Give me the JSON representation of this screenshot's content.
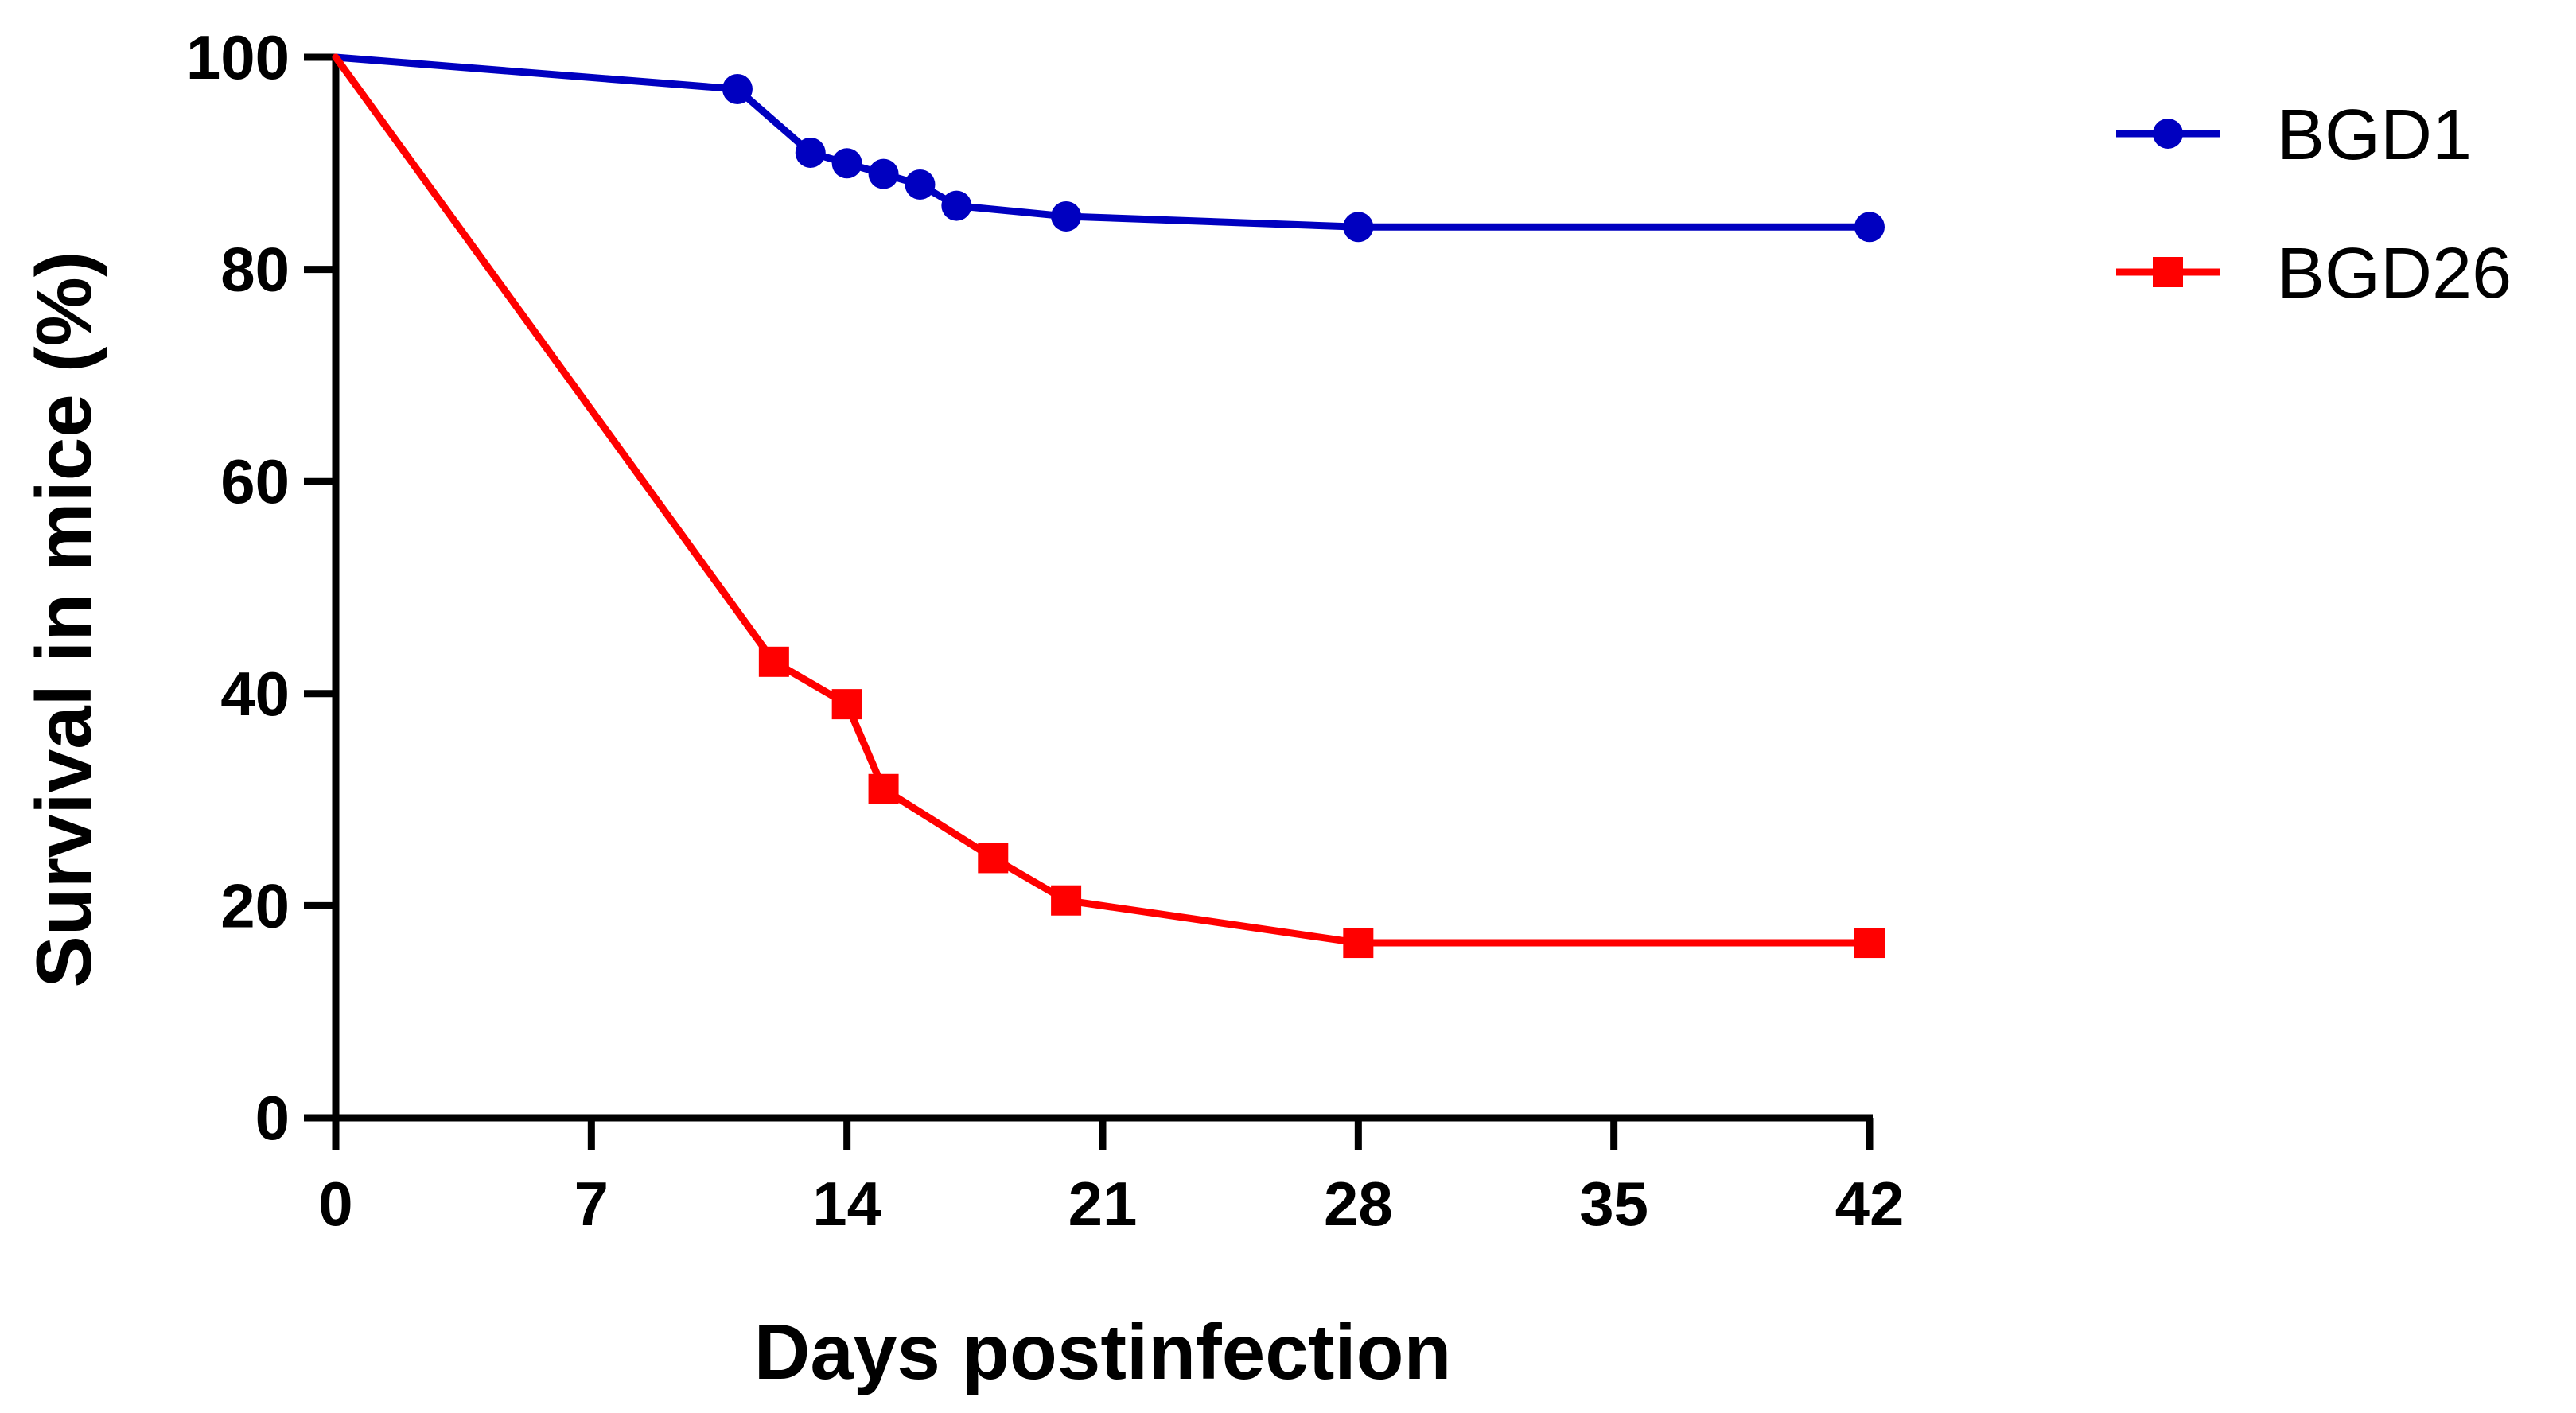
{
  "chart_data": {
    "type": "line",
    "title": "",
    "xlabel": "Days postinfection",
    "ylabel": "Survival in mice (%)",
    "xlim": [
      0,
      42
    ],
    "ylim": [
      0,
      100
    ],
    "xticks": [
      0,
      7,
      14,
      21,
      28,
      35,
      42
    ],
    "yticks": [
      0,
      20,
      40,
      60,
      80,
      100
    ],
    "grid": false,
    "legend_position": "top-right",
    "series": [
      {
        "name": "BGD1",
        "color": "#0000c0",
        "marker": "circle",
        "x": [
          0,
          11,
          13,
          14,
          15,
          16,
          17,
          20,
          28,
          42
        ],
        "y": [
          100,
          97,
          91,
          90,
          89,
          88,
          86,
          85,
          84,
          84
        ]
      },
      {
        "name": "BGD26",
        "color": "#ff0000",
        "marker": "square",
        "x": [
          0,
          12,
          14,
          15,
          18,
          20,
          28,
          42
        ],
        "y": [
          100,
          43,
          39,
          31,
          24.5,
          20.5,
          16.5,
          16.5
        ]
      }
    ]
  }
}
